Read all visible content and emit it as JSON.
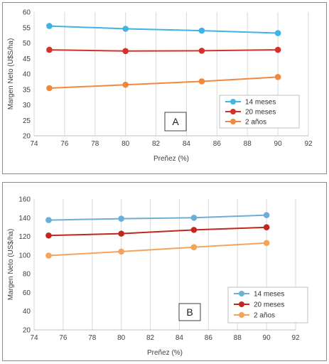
{
  "chart_data": [
    {
      "type": "line",
      "panel_label": "A",
      "xlabel": "Preñez (%)",
      "ylabel": "Margen Neto (U$S/ha)",
      "xlim": [
        74,
        92
      ],
      "ylim": [
        20,
        60
      ],
      "xticks": [
        74,
        76,
        78,
        80,
        82,
        84,
        86,
        88,
        90,
        92
      ],
      "yticks": [
        20,
        25,
        30,
        35,
        40,
        45,
        50,
        55,
        60
      ],
      "grid": "vertical",
      "legend_position": "bottom-right",
      "series": [
        {
          "name": "14 meses",
          "color": "#3fb3e3",
          "x": [
            75,
            80,
            85,
            90
          ],
          "y": [
            55.5,
            54.6,
            54.0,
            53.2
          ]
        },
        {
          "name": "20 meses",
          "color": "#d2322b",
          "x": [
            75,
            80,
            85,
            90
          ],
          "y": [
            47.8,
            47.4,
            47.5,
            47.8
          ]
        },
        {
          "name": "2 años",
          "color": "#f0883f",
          "x": [
            75,
            80,
            85,
            90
          ],
          "y": [
            35.4,
            36.5,
            37.6,
            39.0
          ]
        }
      ]
    },
    {
      "type": "line",
      "panel_label": "B",
      "xlabel": "Preñez (%)",
      "ylabel": "Margen Neto (US$/ha)",
      "xlim": [
        74,
        92
      ],
      "ylim": [
        20,
        160
      ],
      "xticks": [
        74,
        76,
        78,
        80,
        82,
        84,
        86,
        88,
        90,
        92
      ],
      "yticks": [
        20,
        40,
        60,
        80,
        100,
        120,
        140,
        160
      ],
      "grid": "vertical",
      "legend_position": "bottom-right",
      "series": [
        {
          "name": "14 meses",
          "color": "#6baed6",
          "x": [
            75,
            80,
            85,
            90
          ],
          "y": [
            137.5,
            139.0,
            140.0,
            142.8
          ]
        },
        {
          "name": "20 meses",
          "color": "#c0281f",
          "x": [
            75,
            80,
            85,
            90
          ],
          "y": [
            121.0,
            123.0,
            127.0,
            129.8
          ]
        },
        {
          "name": "2 años",
          "color": "#f5a25a",
          "x": [
            75,
            80,
            85,
            90
          ],
          "y": [
            99.5,
            103.8,
            108.5,
            113.0
          ]
        }
      ]
    }
  ]
}
